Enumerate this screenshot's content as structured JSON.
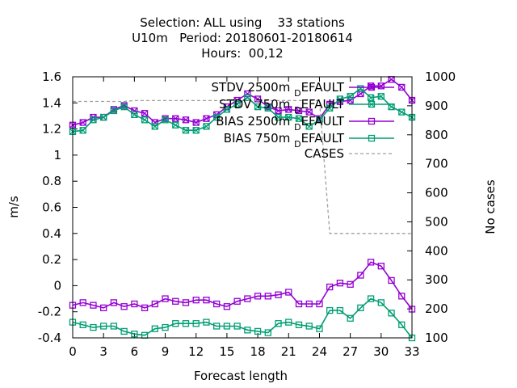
{
  "chart_data": {
    "type": "line",
    "title": [
      "Selection: ALL using    33 stations",
      "U10m   Period: 20180601-20180614",
      "Hours:  00,12"
    ],
    "xlabel": "Forecast length",
    "ylabel": "m/s",
    "y2label": "No cases",
    "xlim": [
      0,
      33
    ],
    "ylim": [
      -0.4,
      1.6
    ],
    "y2lim": [
      100,
      1000
    ],
    "xticks": [
      0,
      3,
      6,
      9,
      12,
      15,
      18,
      21,
      24,
      27,
      30,
      33
    ],
    "xtick_labels": [
      "0",
      "3",
      "6",
      "9",
      "12",
      "15",
      "18",
      "21",
      "24",
      "27",
      "30",
      "33"
    ],
    "yticks": [
      -0.4,
      -0.2,
      0,
      0.2,
      0.4,
      0.6,
      0.8,
      1,
      1.2,
      1.4,
      1.6
    ],
    "ytick_labels": [
      "-0.4",
      "-0.2",
      "0",
      "0.2",
      "0.4",
      "0.6",
      "0.8",
      "1",
      "1.2",
      "1.4",
      "1.6"
    ],
    "y2ticks": [
      100,
      200,
      300,
      400,
      500,
      600,
      700,
      800,
      900,
      1000
    ],
    "y2tick_labels": [
      "100",
      "200",
      "300",
      "400",
      "500",
      "600",
      "700",
      "800",
      "900",
      "1000"
    ],
    "legend_position": "top-right",
    "x": [
      0,
      1,
      2,
      3,
      4,
      5,
      6,
      7,
      8,
      9,
      10,
      11,
      12,
      13,
      14,
      15,
      16,
      17,
      18,
      19,
      20,
      21,
      22,
      23,
      24,
      25,
      26,
      27,
      28,
      29,
      30,
      31,
      32,
      33
    ],
    "series": [
      {
        "name": "STDV 2500m",
        "name_sub": "D",
        "name_rest": "EFAULT",
        "color": "#9400d3",
        "axis": "y",
        "marker": "cross",
        "values": [
          1.23,
          1.25,
          1.29,
          1.29,
          1.35,
          1.38,
          1.34,
          1.32,
          1.25,
          1.28,
          1.28,
          1.27,
          1.25,
          1.28,
          1.31,
          1.37,
          1.42,
          1.47,
          1.43,
          1.37,
          1.34,
          1.35,
          1.34,
          1.33,
          1.28,
          1.39,
          1.41,
          1.42,
          1.47,
          1.53,
          1.53,
          1.58,
          1.52,
          1.42
        ]
      },
      {
        "name": "STDV 750m",
        "name_sub": "D",
        "name_rest": "EFAULT",
        "color": "#009e73",
        "axis": "y",
        "marker": "cross",
        "values": [
          1.18,
          1.19,
          1.27,
          1.29,
          1.34,
          1.37,
          1.31,
          1.27,
          1.22,
          1.27,
          1.23,
          1.19,
          1.19,
          1.22,
          1.29,
          1.35,
          1.39,
          1.44,
          1.37,
          1.36,
          1.29,
          1.29,
          1.28,
          1.22,
          1.27,
          1.36,
          1.43,
          1.45,
          1.51,
          1.44,
          1.45,
          1.37,
          1.33,
          1.29
        ]
      },
      {
        "name": "BIAS 2500m",
        "name_sub": "D",
        "name_rest": "EFAULT",
        "color": "#9400d3",
        "axis": "y",
        "marker": "square",
        "values": [
          -0.15,
          -0.13,
          -0.15,
          -0.17,
          -0.13,
          -0.16,
          -0.14,
          -0.17,
          -0.14,
          -0.1,
          -0.12,
          -0.13,
          -0.11,
          -0.11,
          -0.14,
          -0.16,
          -0.12,
          -0.1,
          -0.08,
          -0.08,
          -0.07,
          -0.05,
          -0.14,
          -0.14,
          -0.14,
          -0.01,
          0.02,
          0.01,
          0.08,
          0.18,
          0.15,
          0.04,
          -0.08,
          -0.18
        ]
      },
      {
        "name": "BIAS 750m",
        "name_sub": "D",
        "name_rest": "EFAULT",
        "color": "#009e73",
        "axis": "y",
        "marker": "square",
        "values": [
          -0.28,
          -0.3,
          -0.32,
          -0.31,
          -0.31,
          -0.35,
          -0.37,
          -0.38,
          -0.33,
          -0.32,
          -0.29,
          -0.29,
          -0.29,
          -0.28,
          -0.31,
          -0.31,
          -0.31,
          -0.34,
          -0.35,
          -0.36,
          -0.29,
          -0.28,
          -0.3,
          -0.31,
          -0.33,
          -0.19,
          -0.19,
          -0.25,
          -0.17,
          -0.1,
          -0.13,
          -0.21,
          -0.3,
          -0.4
        ]
      },
      {
        "name": "CASES",
        "color": "#a0a0a0",
        "axis": "y2",
        "marker": "none",
        "dashed": true,
        "values": [
          915,
          915,
          915,
          915,
          915,
          915,
          918,
          918,
          918,
          918,
          918,
          918,
          918,
          918,
          918,
          918,
          918,
          918,
          918,
          918,
          918,
          918,
          918,
          918,
          918,
          460,
          460,
          460,
          460,
          460,
          460,
          460,
          460,
          460
        ]
      }
    ]
  }
}
